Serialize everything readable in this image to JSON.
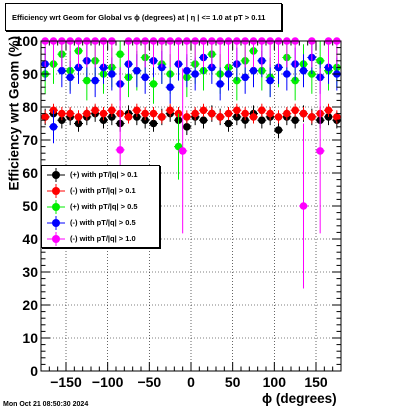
{
  "title": "Efficiency wrt Geom for Global vs ϕ (degrees) at |  η | <= 1.0 at pT > 0.11",
  "timestamp": "Mon Oct 21 08:50:30 2024",
  "chart_data": {
    "type": "scatter",
    "title": "Efficiency wrt Geom for Global vs ϕ (degrees) at |  η | <= 1.0 at pT > 0.11",
    "xlabel": "ϕ (degrees)",
    "ylabel": "Efficiency wrt Geom (%)",
    "xlim": [
      -180,
      180
    ],
    "ylim": [
      0,
      100
    ],
    "x_ticks": [
      -150,
      -100,
      -50,
      0,
      50,
      100,
      150
    ],
    "x_tick_labels": [
      "−150",
      "−100",
      "−50",
      "0",
      "50",
      "100",
      "150"
    ],
    "y_ticks": [
      0,
      10,
      20,
      30,
      40,
      50,
      60,
      70,
      80,
      90,
      100
    ],
    "y_tick_labels": [
      "0",
      "10",
      "20",
      "30",
      "40",
      "50",
      "60",
      "70",
      "80",
      "90",
      "100"
    ],
    "grid": true,
    "legend_position": "middle-left",
    "series": [
      {
        "name": "(+) with pT/|q| > 0.1",
        "color": "#000000",
        "marker": "circle",
        "x": [
          -175,
          -165,
          -155,
          -145,
          -135,
          -125,
          -115,
          -105,
          -95,
          -85,
          -75,
          -65,
          -55,
          -45,
          -35,
          -25,
          -15,
          -5,
          5,
          15,
          25,
          35,
          45,
          55,
          65,
          75,
          85,
          95,
          105,
          115,
          125,
          135,
          145,
          155,
          165,
          175
        ],
        "y": [
          77,
          78,
          76,
          77,
          75,
          77,
          78,
          76,
          77,
          75,
          78,
          77,
          76,
          75,
          77,
          78,
          76,
          74,
          77,
          76,
          78,
          77,
          75,
          77,
          76,
          78,
          76,
          77,
          73,
          77,
          76,
          78,
          77,
          76,
          77,
          76
        ]
      },
      {
        "name": "(-) with pT/|q| > 0.1",
        "color": "#ff0000",
        "marker": "circle",
        "x": [
          -175,
          -165,
          -155,
          -145,
          -135,
          -125,
          -115,
          -105,
          -95,
          -85,
          -75,
          -65,
          -55,
          -45,
          -35,
          -25,
          -15,
          -5,
          5,
          15,
          25,
          35,
          45,
          55,
          65,
          75,
          85,
          95,
          105,
          115,
          125,
          135,
          145,
          155,
          165,
          175
        ],
        "y": [
          77,
          79,
          78,
          78,
          77,
          78,
          79,
          78,
          79,
          78,
          77,
          79,
          78,
          78,
          77,
          79,
          78,
          77,
          78,
          79,
          78,
          77,
          78,
          79,
          78,
          77,
          79,
          78,
          77,
          78,
          79,
          78,
          77,
          78,
          79,
          77
        ]
      },
      {
        "name": "(+) with pT/|q| > 0.5",
        "color": "#00ee00",
        "marker": "circle",
        "x": [
          -175,
          -165,
          -155,
          -145,
          -135,
          -125,
          -115,
          -105,
          -95,
          -85,
          -75,
          -65,
          -55,
          -45,
          -35,
          -25,
          -15,
          -5,
          5,
          15,
          25,
          35,
          45,
          55,
          65,
          75,
          85,
          95,
          105,
          115,
          125,
          135,
          145,
          155,
          165,
          175
        ],
        "y": [
          90,
          93,
          96,
          91,
          97,
          88,
          94,
          90,
          92,
          96,
          89,
          91,
          95,
          87,
          93,
          90,
          68,
          89,
          93,
          91,
          96,
          90,
          92,
          88,
          94,
          97,
          91,
          89,
          92,
          95,
          88,
          93,
          90,
          94,
          91,
          92
        ]
      },
      {
        "name": "(-) with pT/|q| > 0.5",
        "color": "#0000ff",
        "marker": "circle",
        "x": [
          -175,
          -165,
          -155,
          -145,
          -135,
          -125,
          -115,
          -105,
          -95,
          -85,
          -75,
          -65,
          -55,
          -45,
          -35,
          -25,
          -15,
          -5,
          5,
          15,
          25,
          35,
          45,
          55,
          65,
          75,
          85,
          95,
          105,
          115,
          125,
          135,
          145,
          155,
          165,
          175
        ],
        "y": [
          93,
          74,
          91,
          89,
          92,
          94,
          88,
          92,
          90,
          87,
          93,
          91,
          89,
          94,
          92,
          86,
          93,
          91,
          90,
          95,
          92,
          87,
          90,
          93,
          89,
          91,
          94,
          88,
          92,
          90,
          93,
          91,
          95,
          89,
          92,
          90
        ]
      },
      {
        "name": "(-) with pT/|q| > 1.0",
        "color": "#ff00ff",
        "marker": "circle",
        "x": [
          -175,
          -165,
          -155,
          -145,
          -135,
          -125,
          -115,
          -105,
          -95,
          -85,
          -75,
          -65,
          -55,
          -45,
          -35,
          -25,
          -15,
          -10,
          -5,
          5,
          15,
          25,
          35,
          45,
          55,
          65,
          75,
          85,
          95,
          105,
          115,
          125,
          135,
          145,
          155,
          165,
          175
        ],
        "y": [
          100,
          100,
          100,
          100,
          100,
          100,
          100,
          100,
          100,
          67,
          100,
          100,
          100,
          100,
          100,
          100,
          100,
          66.7,
          100,
          100,
          100,
          100,
          100,
          100,
          100,
          100,
          100,
          100,
          100,
          100,
          100,
          100,
          50,
          100,
          66.7,
          100,
          100
        ]
      }
    ]
  }
}
